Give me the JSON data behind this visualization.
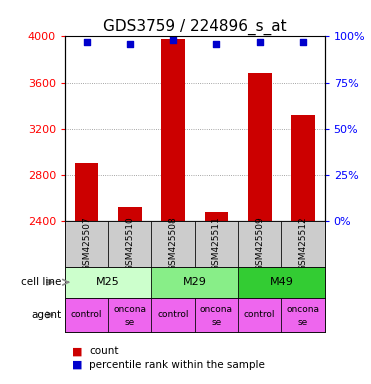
{
  "title": "GDS3759 / 224896_s_at",
  "samples": [
    "GSM425507",
    "GSM425510",
    "GSM425508",
    "GSM425511",
    "GSM425509",
    "GSM425512"
  ],
  "counts": [
    2900,
    2520,
    3975,
    2480,
    3680,
    3320
  ],
  "percentile_ranks": [
    97,
    96,
    98,
    96,
    97,
    97
  ],
  "cell_lines": [
    "M25",
    "M25",
    "M29",
    "M29",
    "M49",
    "M49"
  ],
  "agents": [
    "control",
    "onconase",
    "control",
    "onconase",
    "control",
    "onconase"
  ],
  "cell_line_colors": {
    "M25": "#ccffcc",
    "M29": "#88ee88",
    "M49": "#33cc33"
  },
  "agent_color": "#ee66ee",
  "sample_bg_color": "#cccccc",
  "bar_color": "#cc0000",
  "marker_color": "#0000cc",
  "ylim_left": [
    2400,
    4000
  ],
  "ylim_right": [
    0,
    100
  ],
  "yticks_left": [
    2400,
    2800,
    3200,
    3600,
    4000
  ],
  "yticks_right": [
    0,
    25,
    50,
    75,
    100
  ],
  "grid_color": "#888888",
  "title_fontsize": 11,
  "tick_fontsize": 8,
  "label_fontsize": 8,
  "sample_fontsize": 6.5
}
